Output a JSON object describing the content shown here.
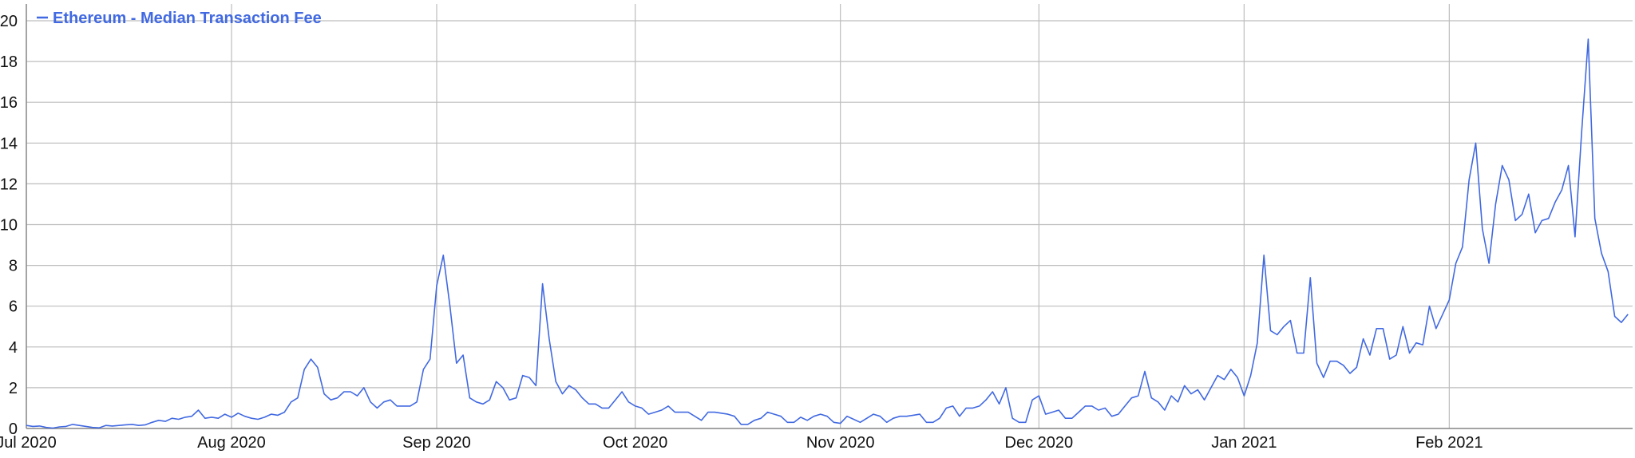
{
  "chart_data": {
    "type": "line",
    "title": "",
    "xlabel": "",
    "ylabel": "",
    "ylim": [
      0,
      20
    ],
    "yticks": [
      0,
      2,
      4,
      6,
      8,
      10,
      12,
      14,
      16,
      18,
      20
    ],
    "xticks": [
      {
        "date": "2020-07-01",
        "label": "Jul 2020"
      },
      {
        "date": "2020-08-01",
        "label": "Aug 2020"
      },
      {
        "date": "2020-09-01",
        "label": "Sep 2020"
      },
      {
        "date": "2020-10-01",
        "label": "Oct 2020"
      },
      {
        "date": "2020-11-01",
        "label": "Nov 2020"
      },
      {
        "date": "2020-12-01",
        "label": "Dec 2020"
      },
      {
        "date": "2021-01-01",
        "label": "Jan 2021"
      },
      {
        "date": "2021-02-01",
        "label": "Feb 2021"
      }
    ],
    "xlim": [
      "2020-07-01",
      "2021-02-28"
    ],
    "grid": true,
    "legend_position": "top-left",
    "series": [
      {
        "name": "Ethereum - Median Transaction Fee",
        "color": "#4169E1",
        "values_by_month": {
          "2020-07": [
            0.15,
            0.1,
            0.12,
            0.05,
            0.02,
            0.08,
            0.1,
            0.2,
            0.15,
            0.1,
            0.05,
            0.03,
            0.15,
            0.12,
            0.15,
            0.18,
            0.2,
            0.15,
            0.18,
            0.3,
            0.4,
            0.35,
            0.5,
            0.45,
            0.55,
            0.6,
            0.9,
            0.5,
            0.55,
            0.5,
            0.7
          ],
          "2020-08": [
            0.55,
            0.75,
            0.6,
            0.5,
            0.45,
            0.55,
            0.7,
            0.65,
            0.8,
            1.3,
            1.5,
            2.9,
            3.4,
            3.0,
            1.7,
            1.4,
            1.5,
            1.8,
            1.8,
            1.6,
            2.0,
            1.3,
            1.0,
            1.3,
            1.4,
            1.1,
            1.1,
            1.1,
            1.3,
            2.9,
            3.4
          ],
          "2020-09": [
            7.0,
            8.5,
            6.0,
            3.2,
            3.6,
            1.5,
            1.3,
            1.2,
            1.4,
            2.3,
            2.0,
            1.4,
            1.5,
            2.6,
            2.5,
            2.1,
            7.1,
            4.4,
            2.3,
            1.7,
            2.1,
            1.9,
            1.5,
            1.2,
            1.2,
            1.0,
            1.0,
            1.4,
            1.8,
            1.3
          ],
          "2020-10": [
            1.1,
            1.0,
            0.7,
            0.8,
            0.9,
            1.1,
            0.8,
            0.8,
            0.8,
            0.6,
            0.4,
            0.8,
            0.8,
            0.75,
            0.7,
            0.6,
            0.2,
            0.2,
            0.4,
            0.5,
            0.8,
            0.7,
            0.6,
            0.3,
            0.3,
            0.55,
            0.4,
            0.6,
            0.7,
            0.6,
            0.3
          ],
          "2020-11": [
            0.25,
            0.6,
            0.45,
            0.3,
            0.5,
            0.7,
            0.6,
            0.3,
            0.5,
            0.6,
            0.6,
            0.65,
            0.7,
            0.3,
            0.3,
            0.5,
            1.0,
            1.1,
            0.6,
            1.0,
            1.0,
            1.1,
            1.4,
            1.8,
            1.2,
            2.0,
            0.5,
            0.3,
            0.3,
            1.4
          ],
          "2020-12": [
            1.6,
            0.7,
            0.8,
            0.9,
            0.5,
            0.5,
            0.8,
            1.1,
            1.1,
            0.9,
            1.0,
            0.6,
            0.7,
            1.1,
            1.5,
            1.6,
            2.8,
            1.5,
            1.3,
            0.9,
            1.6,
            1.3,
            2.1,
            1.7,
            1.9,
            1.4,
            2.0,
            2.6,
            2.4,
            2.9,
            2.5
          ],
          "2021-01": [
            1.6,
            2.6,
            4.2,
            8.5,
            4.8,
            4.6,
            5.0,
            5.3,
            3.7,
            3.7,
            7.4,
            3.2,
            2.5,
            3.3,
            3.3,
            3.1,
            2.7,
            3.0,
            4.4,
            3.6,
            4.9,
            4.9,
            3.4,
            3.6,
            5.0,
            3.7,
            4.2,
            4.1,
            6.0,
            4.9,
            5.6
          ],
          "2021-02": [
            6.3,
            8.1,
            8.9,
            12.2,
            14.0,
            9.8,
            8.1,
            11.0,
            12.9,
            12.2,
            10.2,
            10.5,
            11.5,
            9.6,
            10.2,
            10.3,
            11.1,
            11.7,
            12.9,
            9.4,
            14.5,
            19.1,
            10.3,
            8.6,
            7.7,
            5.5,
            5.2,
            5.6
          ]
        }
      }
    ]
  }
}
